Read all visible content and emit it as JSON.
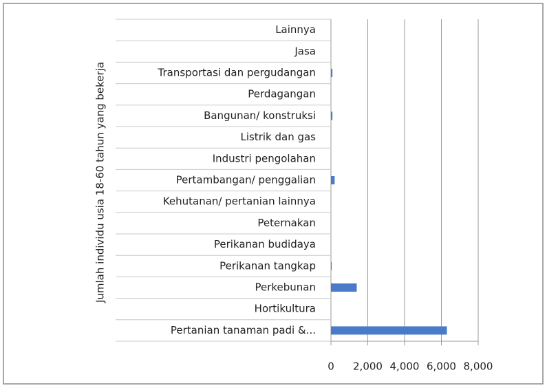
{
  "chart_data": {
    "type": "bar",
    "orientation": "horizontal",
    "y_axis_label": "Jumlah individu usia 18-60 tahun yang bekerja",
    "categories": [
      "Pertanian tanaman padi &...",
      "Hortikultura",
      "Perkebunan",
      "Perikanan tangkap",
      "Perikanan budidaya",
      "Peternakan",
      "Kehutanan/ pertanian lainnya",
      "Pertambangan/ penggalian",
      "Industri pengolahan",
      "Listrik dan gas",
      "Bangunan/ konstruksi",
      "Perdagangan",
      "Transportasi dan pergudangan",
      "Jasa",
      "Lainnya"
    ],
    "values": [
      6300,
      0,
      1400,
      40,
      0,
      0,
      0,
      200,
      0,
      0,
      80,
      0,
      80,
      0,
      0
    ],
    "color": "#4a7bc8",
    "xlim": [
      0,
      8000
    ],
    "xticks": [
      0,
      {
        "value": 2000,
        "label": "2,000"
      },
      {
        "value": 4000,
        "label": "4,000"
      },
      {
        "value": 6000,
        "label": "6,000"
      },
      {
        "value": 8000,
        "label": "8,000"
      }
    ],
    "grid": true
  }
}
